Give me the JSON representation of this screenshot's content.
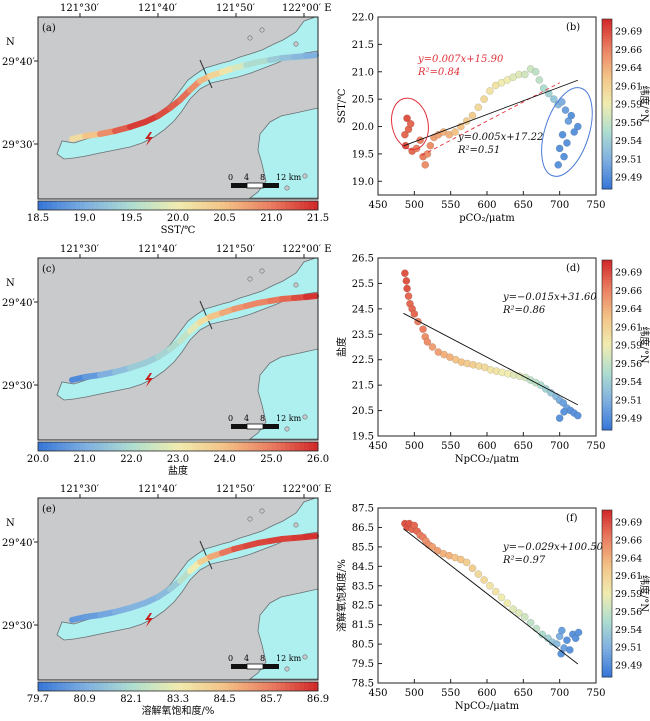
{
  "colors": {
    "water": "#aef0f0",
    "land": "#c8cacb",
    "coast": "#6a6f73",
    "lat_colormap": [
      "#3a78d8",
      "#7fb0e0",
      "#aeddd0",
      "#f0ecb0",
      "#f3c387",
      "#ea7f62",
      "#d22b2b"
    ],
    "trend_red": "#e0303a",
    "ellipse_blue": "#4a7ad8",
    "scatter_edge": "#cc2222"
  },
  "maps": [
    {
      "panel_label": "(a)",
      "lon_ticks": [
        "121°30′",
        "121°40′",
        "121°50′",
        "122°00′ E"
      ],
      "lat_ticks": [
        "29°40′",
        "29°30′"
      ],
      "north_label": "N",
      "scale_ticks": [
        "0",
        "4",
        "8",
        "12 km"
      ],
      "colorbar_ticks": [
        "18.5",
        "19.0",
        "19.5",
        "20.0",
        "20.5",
        "21.0",
        "21.5"
      ],
      "colorbar_label": "SST/℃",
      "colorbar_range": [
        18.5,
        21.5
      ],
      "track_values": [
        20.2,
        20.5,
        20.9,
        21.2,
        21.4,
        21.3,
        21.2,
        21.1,
        20.9,
        20.6,
        20.3,
        20.1,
        19.8,
        19.5,
        19.3,
        19.2,
        19.1,
        19.0
      ]
    },
    {
      "panel_label": "(c)",
      "lon_ticks": [
        "121°30′",
        "121°40′",
        "121°50′",
        "122°00′ E"
      ],
      "lat_ticks": [
        "29°40′",
        "29°30′"
      ],
      "north_label": "N",
      "scale_ticks": [
        "0",
        "4",
        "8",
        "12 km"
      ],
      "colorbar_ticks": [
        "20.0",
        "21.0",
        "22.0",
        "23.0",
        "24.0",
        "25.0",
        "26.0"
      ],
      "colorbar_label": "盐度",
      "colorbar_range": [
        20.0,
        26.0
      ],
      "track_values": [
        20.3,
        20.6,
        21.0,
        21.3,
        21.6,
        21.8,
        22.0,
        22.3,
        22.8,
        23.4,
        24.0,
        24.4,
        24.7,
        24.9,
        25.1,
        25.3,
        25.6,
        25.9
      ]
    },
    {
      "panel_label": "(e)",
      "lon_ticks": [
        "121°30′",
        "121°40′",
        "121°50′",
        "122°00′ E"
      ],
      "lat_ticks": [
        "29°40′",
        "29°30′"
      ],
      "north_label": "N",
      "scale_ticks": [
        "0",
        "4",
        "8",
        "12 km"
      ],
      "colorbar_ticks": [
        "79.7",
        "80.9",
        "82.1",
        "83.3",
        "84.5",
        "85.7",
        "86.9"
      ],
      "colorbar_label": "溶解氧饱和度/%",
      "colorbar_range": [
        79.7,
        86.9
      ],
      "track_values": [
        80.4,
        80.5,
        80.7,
        80.9,
        81.0,
        81.2,
        81.6,
        82.3,
        83.3,
        84.2,
        85.0,
        85.8,
        86.3,
        86.5,
        86.6,
        86.6,
        86.7,
        86.8
      ]
    }
  ],
  "chart_data": [
    {
      "type": "scatter",
      "panel_label": "(b)",
      "xlabel": "pCO₂/μatm",
      "ylabel": "SST/℃",
      "xlim": [
        450,
        750
      ],
      "ylim": [
        18.75,
        22.0
      ],
      "xticks": [
        "450",
        "500",
        "550",
        "600",
        "650",
        "700",
        "750"
      ],
      "yticks": [
        "19.0",
        "19.5",
        "20.0",
        "20.5",
        "21.0",
        "21.5",
        "22.0"
      ],
      "colorbar_label": "纬度/°N",
      "colorbar_ticks": [
        "29.69",
        "29.66",
        "29.64",
        "29.61",
        "29.59",
        "29.56",
        "29.54",
        "29.51",
        "29.49"
      ],
      "colorbar_range": [
        29.47,
        29.71
      ],
      "equations": [
        {
          "text": "y=0.007x+15.90",
          "r2": "R²=0.84",
          "color": "red"
        },
        {
          "text": "y=0.005x+17.22",
          "r2": "R²=0.51",
          "color": "black"
        }
      ],
      "lines": [
        {
          "slope": 0.007,
          "intercept": 15.9,
          "x": [
            510,
            700
          ],
          "style": "dashed-red"
        },
        {
          "slope": 0.005,
          "intercept": 17.22,
          "x": [
            485,
            725
          ],
          "style": "solid-black"
        }
      ],
      "points": [
        {
          "x": 487,
          "y": 19.85,
          "lat": 29.68
        },
        {
          "x": 490,
          "y": 20.15,
          "lat": 29.69
        },
        {
          "x": 492,
          "y": 19.95,
          "lat": 29.68
        },
        {
          "x": 495,
          "y": 20.05,
          "lat": 29.68
        },
        {
          "x": 488,
          "y": 19.65,
          "lat": 29.69
        },
        {
          "x": 497,
          "y": 19.55,
          "lat": 29.68
        },
        {
          "x": 503,
          "y": 19.6,
          "lat": 29.67
        },
        {
          "x": 508,
          "y": 19.75,
          "lat": 29.67
        },
        {
          "x": 512,
          "y": 19.45,
          "lat": 29.67
        },
        {
          "x": 515,
          "y": 19.3,
          "lat": 29.66
        },
        {
          "x": 518,
          "y": 19.5,
          "lat": 29.66
        },
        {
          "x": 522,
          "y": 19.65,
          "lat": 29.66
        },
        {
          "x": 527,
          "y": 19.8,
          "lat": 29.65
        },
        {
          "x": 533,
          "y": 19.85,
          "lat": 29.65
        },
        {
          "x": 540,
          "y": 19.9,
          "lat": 29.64
        },
        {
          "x": 548,
          "y": 19.85,
          "lat": 29.64
        },
        {
          "x": 556,
          "y": 19.9,
          "lat": 29.63
        },
        {
          "x": 564,
          "y": 20.0,
          "lat": 29.63
        },
        {
          "x": 572,
          "y": 20.1,
          "lat": 29.62
        },
        {
          "x": 580,
          "y": 20.2,
          "lat": 29.62
        },
        {
          "x": 588,
          "y": 20.35,
          "lat": 29.61
        },
        {
          "x": 596,
          "y": 20.5,
          "lat": 29.61
        },
        {
          "x": 604,
          "y": 20.65,
          "lat": 29.6
        },
        {
          "x": 612,
          "y": 20.75,
          "lat": 29.6
        },
        {
          "x": 620,
          "y": 20.8,
          "lat": 29.59
        },
        {
          "x": 628,
          "y": 20.85,
          "lat": 29.59
        },
        {
          "x": 636,
          "y": 20.9,
          "lat": 29.58
        },
        {
          "x": 644,
          "y": 20.95,
          "lat": 29.58
        },
        {
          "x": 652,
          "y": 20.95,
          "lat": 29.57
        },
        {
          "x": 660,
          "y": 21.05,
          "lat": 29.57
        },
        {
          "x": 667,
          "y": 21.0,
          "lat": 29.56
        },
        {
          "x": 672,
          "y": 20.85,
          "lat": 29.56
        },
        {
          "x": 678,
          "y": 20.7,
          "lat": 29.55
        },
        {
          "x": 685,
          "y": 20.6,
          "lat": 29.54
        },
        {
          "x": 692,
          "y": 20.5,
          "lat": 29.53
        },
        {
          "x": 698,
          "y": 20.4,
          "lat": 29.52
        },
        {
          "x": 703,
          "y": 20.45,
          "lat": 29.51
        },
        {
          "x": 708,
          "y": 20.3,
          "lat": 29.5
        },
        {
          "x": 712,
          "y": 20.1,
          "lat": 29.5
        },
        {
          "x": 716,
          "y": 20.2,
          "lat": 29.49
        },
        {
          "x": 720,
          "y": 19.9,
          "lat": 29.49
        },
        {
          "x": 704,
          "y": 19.85,
          "lat": 29.49
        },
        {
          "x": 700,
          "y": 19.6,
          "lat": 29.49
        },
        {
          "x": 706,
          "y": 19.45,
          "lat": 29.49
        },
        {
          "x": 710,
          "y": 19.7,
          "lat": 29.49
        },
        {
          "x": 725,
          "y": 20.0,
          "lat": 29.49
        },
        {
          "x": 698,
          "y": 19.3,
          "lat": 29.49
        }
      ]
    },
    {
      "type": "scatter",
      "panel_label": "(d)",
      "xlabel": "NpCO₂/μatm",
      "ylabel": "盐度",
      "xlim": [
        450,
        750
      ],
      "ylim": [
        19.5,
        26.5
      ],
      "xticks": [
        "450",
        "500",
        "550",
        "600",
        "650",
        "700",
        "750"
      ],
      "yticks": [
        "19.5",
        "20.5",
        "21.5",
        "22.5",
        "23.5",
        "24.5",
        "25.5",
        "26.5"
      ],
      "colorbar_label": "纬度/°N",
      "colorbar_ticks": [
        "29.69",
        "29.66",
        "29.64",
        "29.61",
        "29.59",
        "29.56",
        "29.54",
        "29.51",
        "29.49"
      ],
      "colorbar_range": [
        29.47,
        29.71
      ],
      "equations": [
        {
          "text": "y=−0.015x+31.60",
          "r2": "R²=0.86",
          "color": "black"
        }
      ],
      "lines": [
        {
          "slope": -0.015,
          "intercept": 31.6,
          "x": [
            485,
            725
          ],
          "style": "solid-black"
        }
      ],
      "points": [
        {
          "x": 487,
          "y": 25.9,
          "lat": 29.69
        },
        {
          "x": 489,
          "y": 25.6,
          "lat": 29.69
        },
        {
          "x": 490,
          "y": 25.3,
          "lat": 29.69
        },
        {
          "x": 492,
          "y": 25.0,
          "lat": 29.68
        },
        {
          "x": 494,
          "y": 24.7,
          "lat": 29.68
        },
        {
          "x": 497,
          "y": 24.5,
          "lat": 29.68
        },
        {
          "x": 500,
          "y": 24.3,
          "lat": 29.68
        },
        {
          "x": 505,
          "y": 24.0,
          "lat": 29.67
        },
        {
          "x": 512,
          "y": 23.7,
          "lat": 29.67
        },
        {
          "x": 515,
          "y": 23.4,
          "lat": 29.66
        },
        {
          "x": 518,
          "y": 23.2,
          "lat": 29.66
        },
        {
          "x": 525,
          "y": 23.0,
          "lat": 29.65
        },
        {
          "x": 533,
          "y": 22.8,
          "lat": 29.65
        },
        {
          "x": 541,
          "y": 22.7,
          "lat": 29.64
        },
        {
          "x": 549,
          "y": 22.6,
          "lat": 29.64
        },
        {
          "x": 557,
          "y": 22.5,
          "lat": 29.63
        },
        {
          "x": 565,
          "y": 22.4,
          "lat": 29.63
        },
        {
          "x": 573,
          "y": 22.35,
          "lat": 29.62
        },
        {
          "x": 581,
          "y": 22.3,
          "lat": 29.62
        },
        {
          "x": 589,
          "y": 22.25,
          "lat": 29.61
        },
        {
          "x": 597,
          "y": 22.2,
          "lat": 29.61
        },
        {
          "x": 605,
          "y": 22.1,
          "lat": 29.6
        },
        {
          "x": 613,
          "y": 22.05,
          "lat": 29.6
        },
        {
          "x": 621,
          "y": 22.0,
          "lat": 29.59
        },
        {
          "x": 629,
          "y": 21.95,
          "lat": 29.59
        },
        {
          "x": 637,
          "y": 21.9,
          "lat": 29.58
        },
        {
          "x": 645,
          "y": 21.85,
          "lat": 29.58
        },
        {
          "x": 653,
          "y": 21.8,
          "lat": 29.57
        },
        {
          "x": 660,
          "y": 21.7,
          "lat": 29.56
        },
        {
          "x": 667,
          "y": 21.6,
          "lat": 29.56
        },
        {
          "x": 674,
          "y": 21.5,
          "lat": 29.55
        },
        {
          "x": 681,
          "y": 21.35,
          "lat": 29.54
        },
        {
          "x": 688,
          "y": 21.2,
          "lat": 29.53
        },
        {
          "x": 695,
          "y": 21.05,
          "lat": 29.52
        },
        {
          "x": 700,
          "y": 20.9,
          "lat": 29.51
        },
        {
          "x": 705,
          "y": 20.8,
          "lat": 29.5
        },
        {
          "x": 710,
          "y": 20.6,
          "lat": 29.5
        },
        {
          "x": 715,
          "y": 20.5,
          "lat": 29.49
        },
        {
          "x": 720,
          "y": 20.4,
          "lat": 29.49
        },
        {
          "x": 725,
          "y": 20.3,
          "lat": 29.49
        },
        {
          "x": 700,
          "y": 20.2,
          "lat": 29.49
        },
        {
          "x": 706,
          "y": 20.45,
          "lat": 29.49
        }
      ]
    },
    {
      "type": "scatter",
      "panel_label": "(f)",
      "xlabel": "NpCO₂/μatm",
      "ylabel": "溶解氧饱和度/%",
      "xlim": [
        450,
        750
      ],
      "ylim": [
        78.5,
        87.5
      ],
      "xticks": [
        "450",
        "500",
        "550",
        "600",
        "650",
        "700",
        "750"
      ],
      "yticks": [
        "78.5",
        "79.5",
        "80.5",
        "81.5",
        "82.5",
        "83.5",
        "84.5",
        "85.5",
        "86.5",
        "87.5"
      ],
      "colorbar_label": "纬度/°N",
      "colorbar_ticks": [
        "29.69",
        "29.66",
        "29.64",
        "29.61",
        "29.59",
        "29.56",
        "29.54",
        "29.51",
        "29.49"
      ],
      "colorbar_range": [
        29.47,
        29.71
      ],
      "equations": [
        {
          "text": "y=−0.029x+100.50",
          "r2": "R²=0.97",
          "color": "black"
        }
      ],
      "lines": [
        {
          "slope": -0.029,
          "intercept": 100.5,
          "x": [
            485,
            725
          ],
          "style": "solid-black"
        }
      ],
      "points": [
        {
          "x": 487,
          "y": 86.7,
          "lat": 29.69
        },
        {
          "x": 490,
          "y": 86.5,
          "lat": 29.69
        },
        {
          "x": 493,
          "y": 86.7,
          "lat": 29.69
        },
        {
          "x": 497,
          "y": 86.4,
          "lat": 29.68
        },
        {
          "x": 500,
          "y": 86.6,
          "lat": 29.68
        },
        {
          "x": 504,
          "y": 86.3,
          "lat": 29.68
        },
        {
          "x": 508,
          "y": 86.1,
          "lat": 29.67
        },
        {
          "x": 512,
          "y": 86.0,
          "lat": 29.67
        },
        {
          "x": 516,
          "y": 85.8,
          "lat": 29.66
        },
        {
          "x": 520,
          "y": 85.6,
          "lat": 29.66
        },
        {
          "x": 525,
          "y": 85.5,
          "lat": 29.65
        },
        {
          "x": 532,
          "y": 85.3,
          "lat": 29.65
        },
        {
          "x": 540,
          "y": 85.15,
          "lat": 29.64
        },
        {
          "x": 548,
          "y": 85.05,
          "lat": 29.64
        },
        {
          "x": 556,
          "y": 84.95,
          "lat": 29.63
        },
        {
          "x": 564,
          "y": 84.85,
          "lat": 29.63
        },
        {
          "x": 572,
          "y": 84.7,
          "lat": 29.62
        },
        {
          "x": 580,
          "y": 84.4,
          "lat": 29.62
        },
        {
          "x": 588,
          "y": 84.1,
          "lat": 29.61
        },
        {
          "x": 596,
          "y": 83.8,
          "lat": 29.61
        },
        {
          "x": 604,
          "y": 83.5,
          "lat": 29.6
        },
        {
          "x": 612,
          "y": 83.2,
          "lat": 29.6
        },
        {
          "x": 620,
          "y": 82.9,
          "lat": 29.59
        },
        {
          "x": 628,
          "y": 82.6,
          "lat": 29.59
        },
        {
          "x": 636,
          "y": 82.3,
          "lat": 29.58
        },
        {
          "x": 644,
          "y": 82.1,
          "lat": 29.58
        },
        {
          "x": 652,
          "y": 81.9,
          "lat": 29.57
        },
        {
          "x": 660,
          "y": 81.6,
          "lat": 29.56
        },
        {
          "x": 668,
          "y": 81.3,
          "lat": 29.56
        },
        {
          "x": 676,
          "y": 81.0,
          "lat": 29.55
        },
        {
          "x": 684,
          "y": 80.8,
          "lat": 29.54
        },
        {
          "x": 690,
          "y": 80.6,
          "lat": 29.53
        },
        {
          "x": 696,
          "y": 80.5,
          "lat": 29.52
        },
        {
          "x": 700,
          "y": 80.9,
          "lat": 29.51
        },
        {
          "x": 703,
          "y": 81.2,
          "lat": 29.5
        },
        {
          "x": 706,
          "y": 80.3,
          "lat": 29.5
        },
        {
          "x": 710,
          "y": 80.7,
          "lat": 29.49
        },
        {
          "x": 714,
          "y": 80.2,
          "lat": 29.49
        },
        {
          "x": 718,
          "y": 81.0,
          "lat": 29.49
        },
        {
          "x": 722,
          "y": 80.8,
          "lat": 29.49
        },
        {
          "x": 726,
          "y": 81.1,
          "lat": 29.49
        },
        {
          "x": 702,
          "y": 80.0,
          "lat": 29.49
        }
      ]
    }
  ]
}
